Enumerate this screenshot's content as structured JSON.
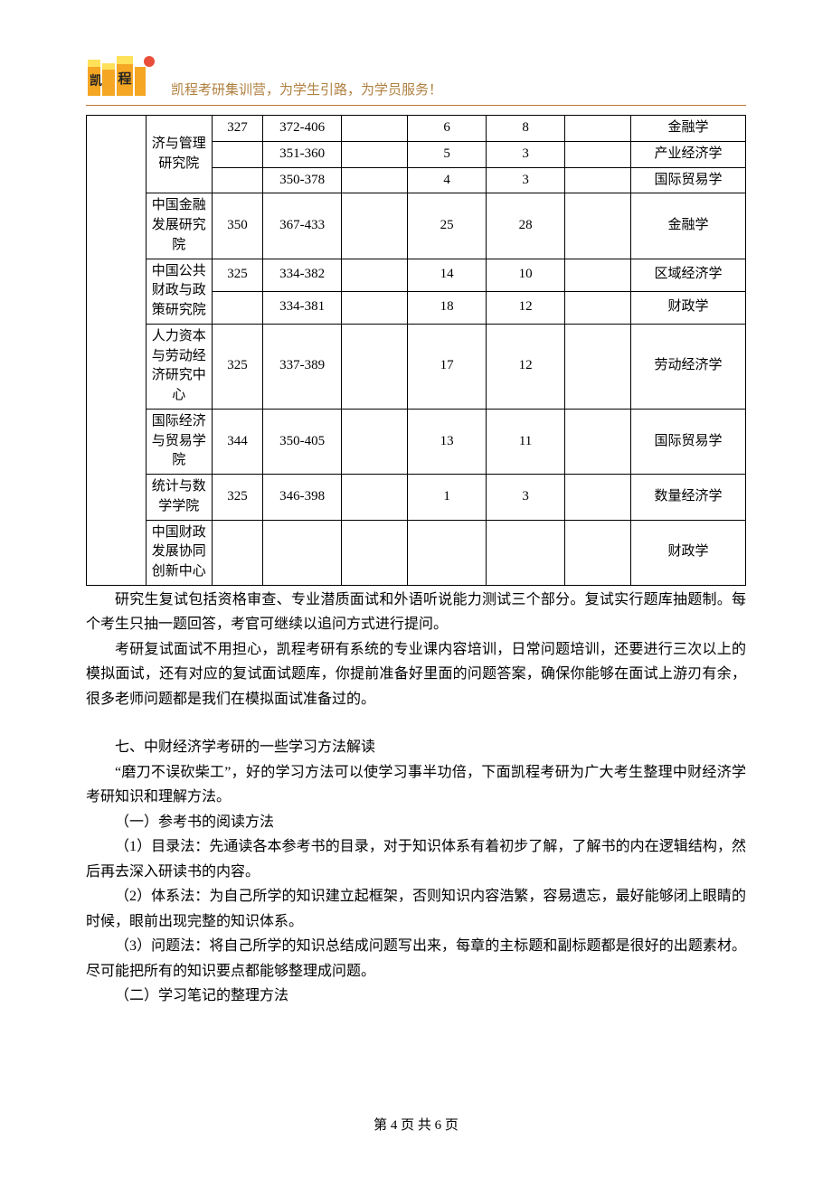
{
  "header": {
    "slogan": "凯程考研集训营，为学生引路，为学员服务！"
  },
  "table": {
    "col_widths_class": [
      "col0",
      "col1",
      "col2",
      "col3",
      "col4",
      "col5",
      "col6",
      "col7",
      "col8"
    ],
    "rows": [
      {
        "c1": {
          "text": "济与管理研究院",
          "rowspan": 3
        },
        "c2": "327",
        "c3": "372-406",
        "c4": "",
        "c5": "6",
        "c6": "8",
        "c7": "",
        "c8": "金融学"
      },
      {
        "c2": "",
        "c3": "351-360",
        "c4": "",
        "c5": "5",
        "c6": "3",
        "c7": "",
        "c8": "产业经济学"
      },
      {
        "c2": "",
        "c3": "350-378",
        "c4": "",
        "c5": "4",
        "c6": "3",
        "c7": "",
        "c8": "国际贸易学"
      },
      {
        "c1": {
          "text": "中国金融发展研究院",
          "rowspan": 1
        },
        "c2": "350",
        "c3": "367-433",
        "c4": "",
        "c5": "25",
        "c6": "28",
        "c7": "",
        "c8": "金融学"
      },
      {
        "c1": {
          "text": "中国公共财政与政策研究院",
          "rowspan": 2
        },
        "c2": "325",
        "c3": "334-382",
        "c4": "",
        "c5": "14",
        "c6": "10",
        "c7": "",
        "c8": "区域经济学"
      },
      {
        "c2": "",
        "c3": "334-381",
        "c4": "",
        "c5": "18",
        "c6": "12",
        "c7": "",
        "c8": "财政学"
      },
      {
        "c1": {
          "text": "人力资本与劳动经济研究中心",
          "rowspan": 1
        },
        "c2": "325",
        "c3": "337-389",
        "c4": "",
        "c5": "17",
        "c6": "12",
        "c7": "",
        "c8": "劳动经济学"
      },
      {
        "c1": {
          "text": "国际经济与贸易学院",
          "rowspan": 1
        },
        "c2": "344",
        "c3": "350-405",
        "c4": "",
        "c5": "13",
        "c6": "11",
        "c7": "",
        "c8": "国际贸易学"
      },
      {
        "c1": {
          "text": "统计与数学学院",
          "rowspan": 1
        },
        "c2": "325",
        "c3": "346-398",
        "c4": "",
        "c5": "1",
        "c6": "3",
        "c7": "",
        "c8": "数量经济学"
      },
      {
        "c1": {
          "text": "中国财政发展协同创新中心",
          "rowspan": 1
        },
        "c2": "",
        "c3": "",
        "c4": "",
        "c5": "",
        "c6": "",
        "c7": "",
        "c8": "财政学"
      }
    ]
  },
  "paragraphs": [
    {
      "text": "研究生复试包括资格审查、专业潜质面试和外语听说能力测试三个部分。复试实行题库抽题制。每个考生只抽一题回答，考官可继续以追问方式进行提问。",
      "gap": false
    },
    {
      "text": "考研复试面试不用担心，凯程考研有系统的专业课内容培训，日常问题培训，还要进行三次以上的模拟面试，还有对应的复试面试题库，你提前准备好里面的问题答案，确保你能够在面试上游刃有余，很多老师问题都是我们在模拟面试准备过的。",
      "gap": false
    },
    {
      "text": "七、中财经济学考研的一些学习方法解读",
      "gap": true
    },
    {
      "text": "“磨刀不误砍柴工”，好的学习方法可以使学习事半功倍，下面凯程考研为广大考生整理中财经济学考研知识和理解方法。",
      "gap": false
    },
    {
      "text": "（一）参考书的阅读方法",
      "gap": false
    },
    {
      "text": "（1）目录法：先通读各本参考书的目录，对于知识体系有着初步了解，了解书的内在逻辑结构，然后再去深入研读书的内容。",
      "gap": false
    },
    {
      "text": "（2）体系法：为自己所学的知识建立起框架，否则知识内容浩繁，容易遗忘，最好能够闭上眼睛的时候，眼前出现完整的知识体系。",
      "gap": false
    },
    {
      "text": "（3）问题法：将自己所学的知识总结成问题写出来，每章的主标题和副标题都是很好的出题素材。尽可能把所有的知识要点都能够整理成问题。",
      "gap": false
    },
    {
      "text": "（二）学习笔记的整理方法",
      "gap": false
    }
  ],
  "footer": {
    "text": "第 4 页 共 6 页"
  },
  "colors": {
    "brand_border": "#c07830",
    "slogan_color": "#b08040",
    "logo_orange": "#f5a623",
    "logo_yellow": "#ffe15a",
    "logo_red": "#e94e3a",
    "logo_black": "#232323"
  }
}
